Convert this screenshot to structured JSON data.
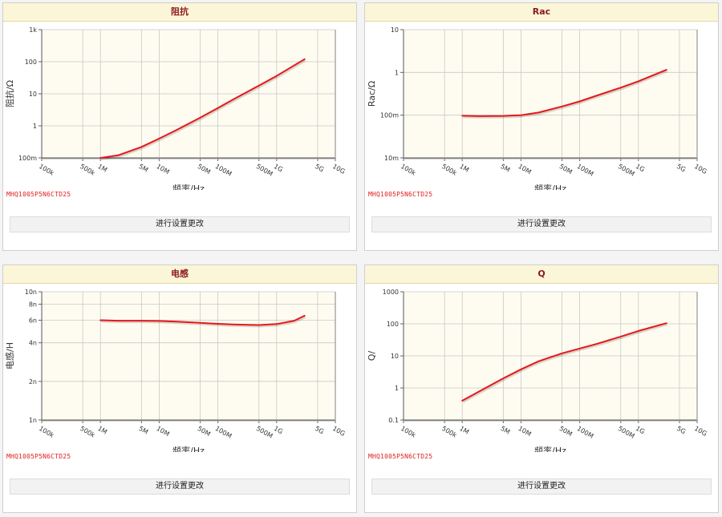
{
  "colors": {
    "line": "#e8171a",
    "plot_bg": "#fefcf0",
    "title_bg": "#fcf6d9",
    "title_text": "#8b1a1a"
  },
  "button_label": "进行设置更改",
  "chart_data": [
    {
      "type": "line",
      "title": "阻抗",
      "xlabel": "频率/Hz",
      "ylabel": "阻抗/Ω",
      "xscale": "log",
      "yscale": "log",
      "xlim": [
        100000,
        10000000000
      ],
      "ylim": [
        0.1,
        1000
      ],
      "xticks": [
        {
          "v": 100000,
          "label": "100k"
        },
        {
          "v": 500000,
          "label": "500k"
        },
        {
          "v": 1000000,
          "label": "1M"
        },
        {
          "v": 5000000,
          "label": "5M"
        },
        {
          "v": 10000000,
          "label": "10M"
        },
        {
          "v": 50000000,
          "label": "50M"
        },
        {
          "v": 100000000,
          "label": "100M"
        },
        {
          "v": 500000000,
          "label": "500M"
        },
        {
          "v": 1000000000,
          "label": "1G"
        },
        {
          "v": 5000000000,
          "label": "5G"
        },
        {
          "v": 10000000000,
          "label": "10G"
        }
      ],
      "yticks": [
        {
          "v": 0.1,
          "label": "100m"
        },
        {
          "v": 1,
          "label": "1"
        },
        {
          "v": 10,
          "label": "10"
        },
        {
          "v": 100,
          "label": "100"
        },
        {
          "v": 1000,
          "label": "1k"
        }
      ],
      "x": [
        1000000,
        2000000,
        5000000,
        10000000,
        20000000,
        50000000,
        100000000,
        200000000,
        500000000,
        1000000000,
        3000000000
      ],
      "y": [
        0.1,
        0.12,
        0.22,
        0.4,
        0.75,
        1.8,
        3.6,
        7.3,
        18,
        36,
        120
      ],
      "series_name": "MHQ1005P5N6CTD25",
      "part_label": "MHQ1005P5N6CTD25"
    },
    {
      "type": "line",
      "title": "Rac",
      "xlabel": "频率/Hz",
      "ylabel": "Rac/Ω",
      "xscale": "log",
      "yscale": "log",
      "xlim": [
        100000,
        10000000000
      ],
      "ylim": [
        0.01,
        10
      ],
      "xticks": [
        {
          "v": 100000,
          "label": "100k"
        },
        {
          "v": 500000,
          "label": "500k"
        },
        {
          "v": 1000000,
          "label": "1M"
        },
        {
          "v": 5000000,
          "label": "5M"
        },
        {
          "v": 10000000,
          "label": "10M"
        },
        {
          "v": 50000000,
          "label": "50M"
        },
        {
          "v": 100000000,
          "label": "100M"
        },
        {
          "v": 500000000,
          "label": "500M"
        },
        {
          "v": 1000000000,
          "label": "1G"
        },
        {
          "v": 5000000000,
          "label": "5G"
        },
        {
          "v": 10000000000,
          "label": "10G"
        }
      ],
      "yticks": [
        {
          "v": 0.01,
          "label": "10m"
        },
        {
          "v": 0.1,
          "label": "100m"
        },
        {
          "v": 1,
          "label": "1"
        },
        {
          "v": 10,
          "label": "10"
        }
      ],
      "x": [
        1000000,
        2000000,
        5000000,
        10000000,
        20000000,
        50000000,
        100000000,
        200000000,
        500000000,
        1000000000,
        3000000000
      ],
      "y": [
        0.097,
        0.095,
        0.096,
        0.1,
        0.115,
        0.16,
        0.21,
        0.29,
        0.44,
        0.62,
        1.15
      ],
      "series_name": "MHQ1005P5N6CTD25",
      "part_label": "MHQ1005P5N6CTD25"
    },
    {
      "type": "line",
      "title": "电感",
      "xlabel": "频率/Hz",
      "ylabel": "电感/H",
      "xscale": "log",
      "yscale": "log",
      "xlim": [
        100000,
        10000000000
      ],
      "ylim": [
        1e-09,
        1e-08
      ],
      "xticks": [
        {
          "v": 100000,
          "label": "100k"
        },
        {
          "v": 500000,
          "label": "500k"
        },
        {
          "v": 1000000,
          "label": "1M"
        },
        {
          "v": 5000000,
          "label": "5M"
        },
        {
          "v": 10000000,
          "label": "10M"
        },
        {
          "v": 50000000,
          "label": "50M"
        },
        {
          "v": 100000000,
          "label": "100M"
        },
        {
          "v": 500000000,
          "label": "500M"
        },
        {
          "v": 1000000000,
          "label": "1G"
        },
        {
          "v": 5000000000,
          "label": "5G"
        },
        {
          "v": 10000000000,
          "label": "10G"
        }
      ],
      "yticks": [
        {
          "v": 1e-09,
          "label": "1n"
        },
        {
          "v": 2e-09,
          "label": "2n"
        },
        {
          "v": 4e-09,
          "label": "4n"
        },
        {
          "v": 6e-09,
          "label": "6n"
        },
        {
          "v": 8e-09,
          "label": "8n"
        },
        {
          "v": 1e-08,
          "label": "10n"
        }
      ],
      "x": [
        1000000,
        2000000,
        5000000,
        10000000,
        20000000,
        50000000,
        100000000,
        200000000,
        500000000,
        1000000000,
        2000000000,
        3000000000
      ],
      "y": [
        6e-09,
        5.95e-09,
        5.95e-09,
        5.92e-09,
        5.85e-09,
        5.72e-09,
        5.62e-09,
        5.55e-09,
        5.5e-09,
        5.6e-09,
        5.95e-09,
        6.5e-09
      ],
      "series_name": "MHQ1005P5N6CTD25",
      "part_label": "MHQ1005P5N6CTD25"
    },
    {
      "type": "line",
      "title": "Q",
      "xlabel": "频率/Hz",
      "ylabel": "Q/",
      "xscale": "log",
      "yscale": "log",
      "xlim": [
        100000,
        10000000000
      ],
      "ylim": [
        0.1,
        1000
      ],
      "xticks": [
        {
          "v": 100000,
          "label": "100k"
        },
        {
          "v": 500000,
          "label": "500k"
        },
        {
          "v": 1000000,
          "label": "1M"
        },
        {
          "v": 5000000,
          "label": "5M"
        },
        {
          "v": 10000000,
          "label": "10M"
        },
        {
          "v": 50000000,
          "label": "50M"
        },
        {
          "v": 100000000,
          "label": "100M"
        },
        {
          "v": 500000000,
          "label": "500M"
        },
        {
          "v": 1000000000,
          "label": "1G"
        },
        {
          "v": 5000000000,
          "label": "5G"
        },
        {
          "v": 10000000000,
          "label": "10G"
        }
      ],
      "yticks": [
        {
          "v": 0.1,
          "label": "0.1"
        },
        {
          "v": 1,
          "label": "1"
        },
        {
          "v": 10,
          "label": "10"
        },
        {
          "v": 100,
          "label": "100"
        },
        {
          "v": 1000,
          "label": "1000"
        }
      ],
      "x": [
        1000000,
        2000000,
        5000000,
        10000000,
        20000000,
        50000000,
        100000000,
        200000000,
        500000000,
        1000000000,
        3000000000
      ],
      "y": [
        0.4,
        0.8,
        2,
        3.8,
        6.8,
        12,
        17,
        24,
        40,
        60,
        105
      ],
      "series_name": "MHQ1005P5N6CTD25",
      "part_label": "MHQ1005P5N6CTD25"
    }
  ]
}
